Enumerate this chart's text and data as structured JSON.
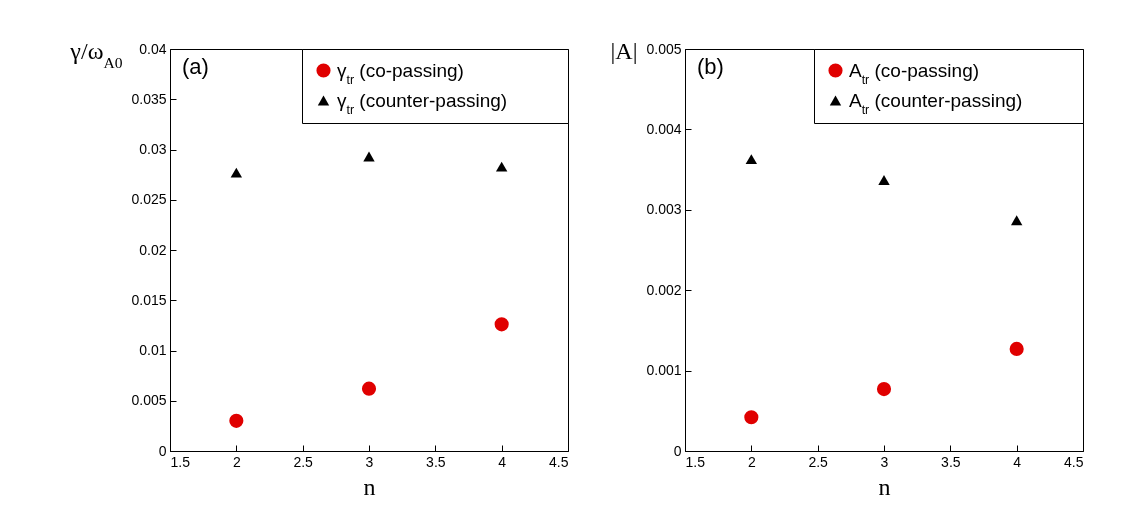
{
  "chart_data": [
    {
      "type": "scatter",
      "xlabel": "n",
      "ylabel": "γ/ω$_{A0}$",
      "annotations": [
        "(a)"
      ],
      "legend": "top right",
      "grid": false,
      "x": [
        2,
        3,
        4
      ],
      "xlim": [
        1.5,
        4.5
      ],
      "xticks": [
        1.5,
        2,
        2.5,
        3,
        3.5,
        4,
        4.5
      ],
      "ylim": [
        0,
        0.04
      ],
      "yticks": [
        0,
        0.005,
        0.01,
        0.015,
        0.02,
        0.025,
        0.03,
        0.035,
        0.04
      ],
      "series": [
        {
          "name": "γ$_{tr}$ (co-passing)",
          "color": "#e00000",
          "marker": "circle",
          "values": [
            0.003,
            0.0062,
            0.0126
          ]
        },
        {
          "name": "γ$_{tr}$ (counter-passing)",
          "color": "#000000",
          "marker": "triangle",
          "values": [
            0.0277,
            0.0293,
            0.0283
          ]
        }
      ]
    },
    {
      "type": "scatter",
      "xlabel": "n",
      "ylabel": "|A|",
      "annotations": [
        "(b)"
      ],
      "legend": "top right",
      "grid": false,
      "x": [
        2,
        3,
        4
      ],
      "xlim": [
        1.5,
        4.5
      ],
      "xticks": [
        1.5,
        2,
        2.5,
        3,
        3.5,
        4,
        4.5
      ],
      "ylim": [
        0,
        0.005
      ],
      "yticks": [
        0,
        0.001,
        0.002,
        0.003,
        0.004,
        0.005
      ],
      "series": [
        {
          "name": "A$_{tr}$ (co-passing)",
          "color": "#e00000",
          "marker": "circle",
          "values": [
            0.00042,
            0.00077,
            0.00127
          ]
        },
        {
          "name": "A$_{tr}$ (counter-passing)",
          "color": "#000000",
          "marker": "triangle",
          "values": [
            0.00363,
            0.00337,
            0.00287
          ]
        }
      ]
    }
  ]
}
